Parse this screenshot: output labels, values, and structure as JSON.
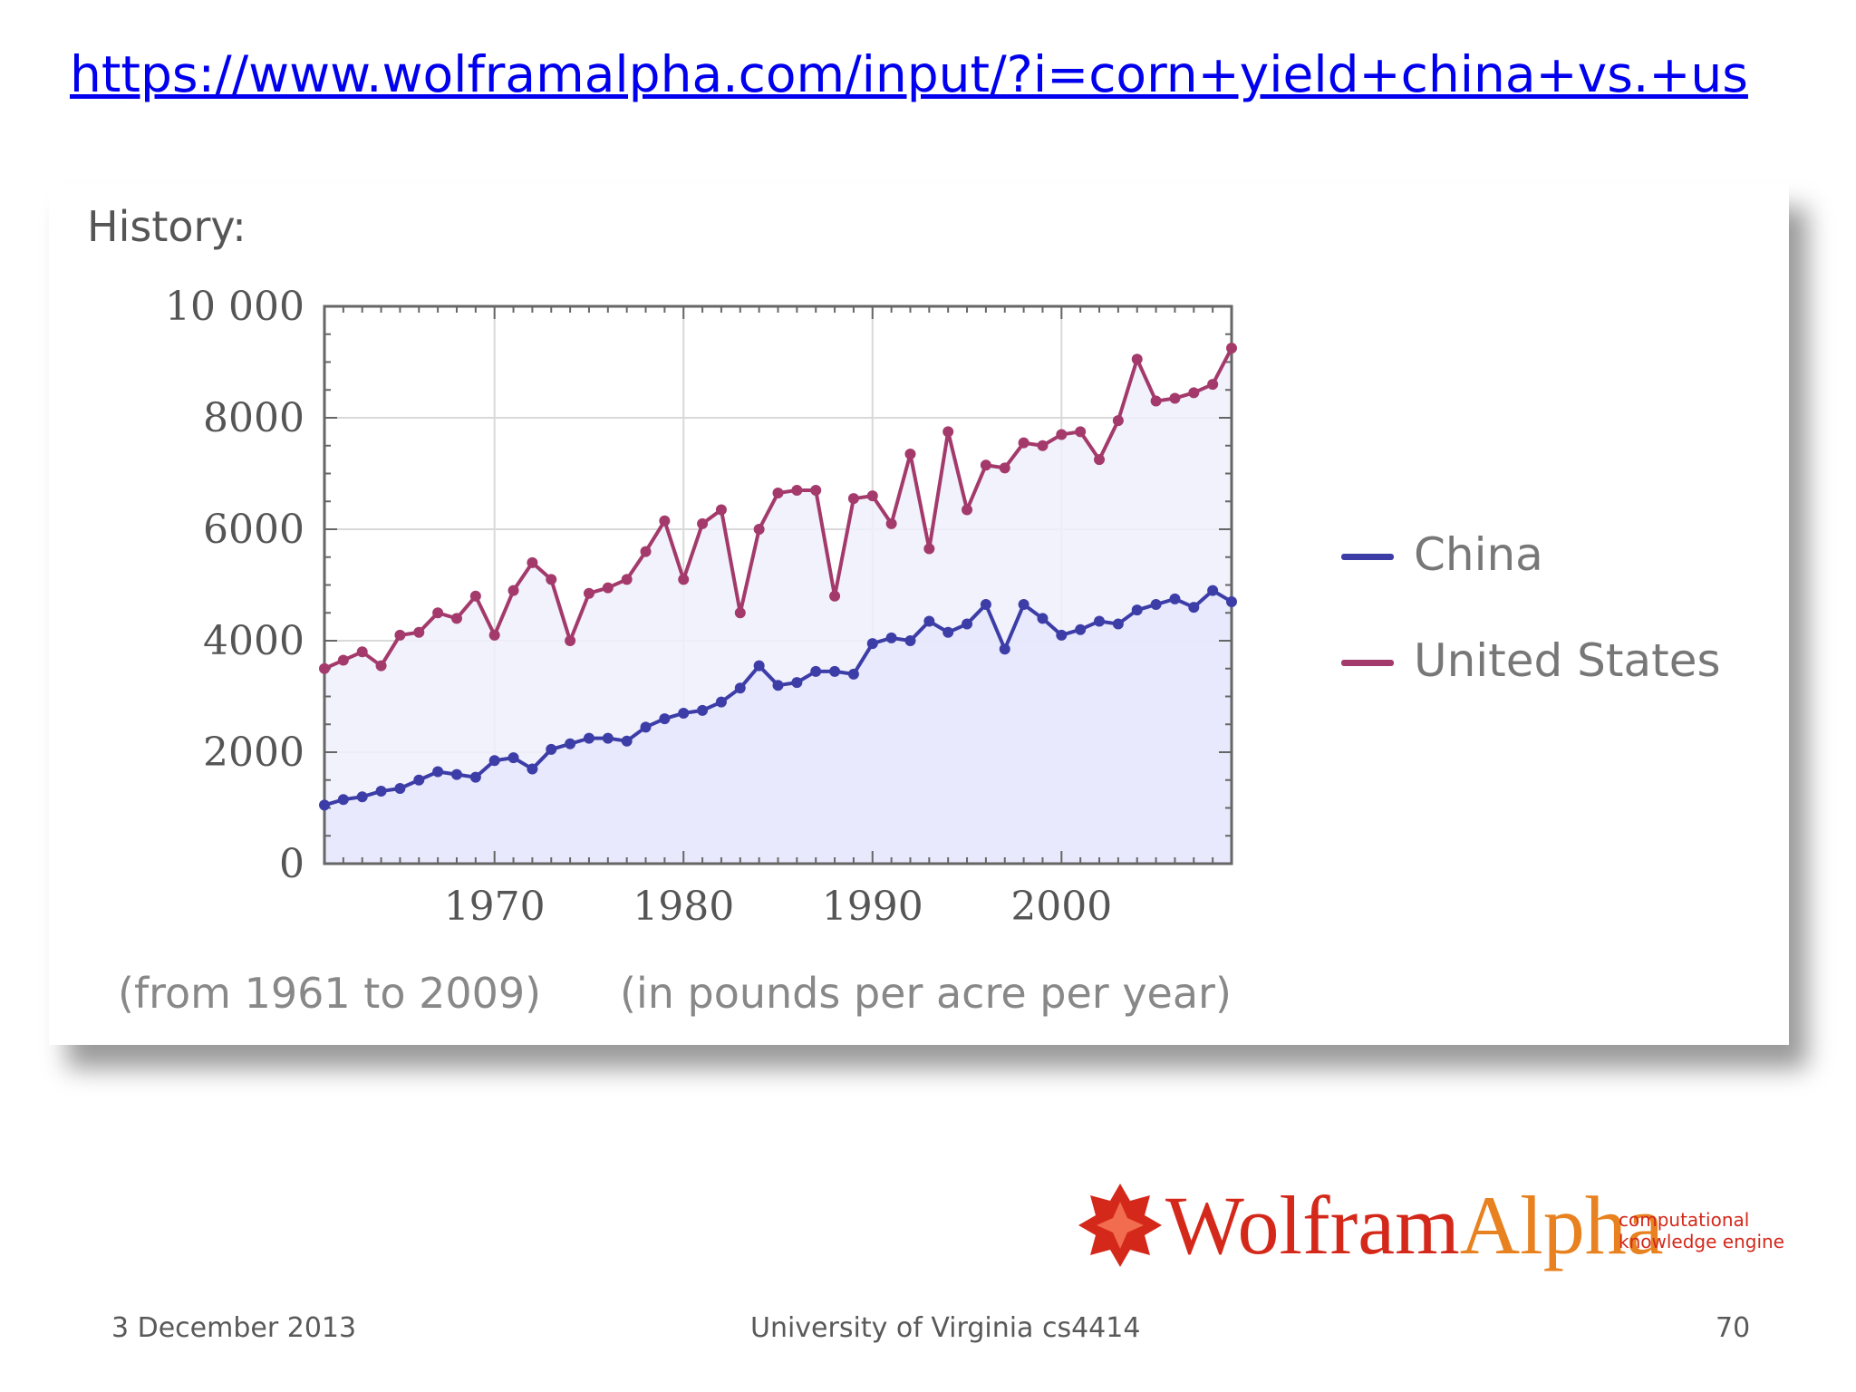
{
  "slide": {
    "link": "https://www.wolframalpha.com/input/?i=corn+yield+china+vs.+us",
    "footer_date": "3 December 2013",
    "footer_center": "University of Virginia cs4414",
    "page_number": "70"
  },
  "panel": {
    "heading": "History:",
    "range_note": "(from 1961 to 2009)",
    "unit_note": "(in pounds per acre per year)"
  },
  "logo": {
    "wolfram": "Wolfram",
    "alpha": "Alpha",
    "tagline_line1": "computational",
    "tagline_line2": "knowledge engine"
  },
  "chart_data": {
    "type": "line",
    "title": "",
    "xlabel": "",
    "ylabel": "",
    "xlim": [
      1961,
      2009
    ],
    "ylim": [
      0,
      10000
    ],
    "x_ticks": [
      1970,
      1980,
      1990,
      2000
    ],
    "x_tick_labels": [
      "1970",
      "1980",
      "1990",
      "2000"
    ],
    "y_ticks": [
      0,
      2000,
      4000,
      6000,
      8000,
      10000
    ],
    "y_tick_labels": [
      "0",
      "2000",
      "4000",
      "6000",
      "8000",
      "10 000"
    ],
    "grid": true,
    "legend_position": "right",
    "x": [
      1961,
      1962,
      1963,
      1964,
      1965,
      1966,
      1967,
      1968,
      1969,
      1970,
      1971,
      1972,
      1973,
      1974,
      1975,
      1976,
      1977,
      1978,
      1979,
      1980,
      1981,
      1982,
      1983,
      1984,
      1985,
      1986,
      1987,
      1988,
      1989,
      1990,
      1991,
      1992,
      1993,
      1994,
      1995,
      1996,
      1997,
      1998,
      1999,
      2000,
      2001,
      2002,
      2003,
      2004,
      2005,
      2006,
      2007,
      2008,
      2009
    ],
    "series": [
      {
        "name": "China",
        "color": "#3d3da8",
        "values": [
          1050,
          1150,
          1200,
          1300,
          1350,
          1500,
          1650,
          1600,
          1550,
          1850,
          1900,
          1700,
          2050,
          2150,
          2250,
          2250,
          2200,
          2450,
          2600,
          2700,
          2750,
          2900,
          3150,
          3550,
          3200,
          3250,
          3450,
          3450,
          3400,
          3950,
          4050,
          4000,
          4350,
          4150,
          4300,
          4650,
          3850,
          4650,
          4400,
          4100,
          4200,
          4350,
          4300,
          4550,
          4650,
          4750,
          4600,
          4900,
          4700
        ]
      },
      {
        "name": "United States",
        "color": "#a33a6b",
        "values": [
          3500,
          3650,
          3800,
          3550,
          4100,
          4150,
          4500,
          4400,
          4800,
          4100,
          4900,
          5400,
          5100,
          4000,
          4850,
          4950,
          5100,
          5600,
          6150,
          5100,
          6100,
          6350,
          4500,
          6000,
          6650,
          6700,
          6700,
          4800,
          6550,
          6600,
          6100,
          7350,
          5650,
          7750,
          6350,
          7150,
          7100,
          7550,
          7500,
          7700,
          7750,
          7250,
          7950,
          9050,
          8300,
          8350,
          8450,
          8600,
          9250
        ]
      }
    ]
  }
}
